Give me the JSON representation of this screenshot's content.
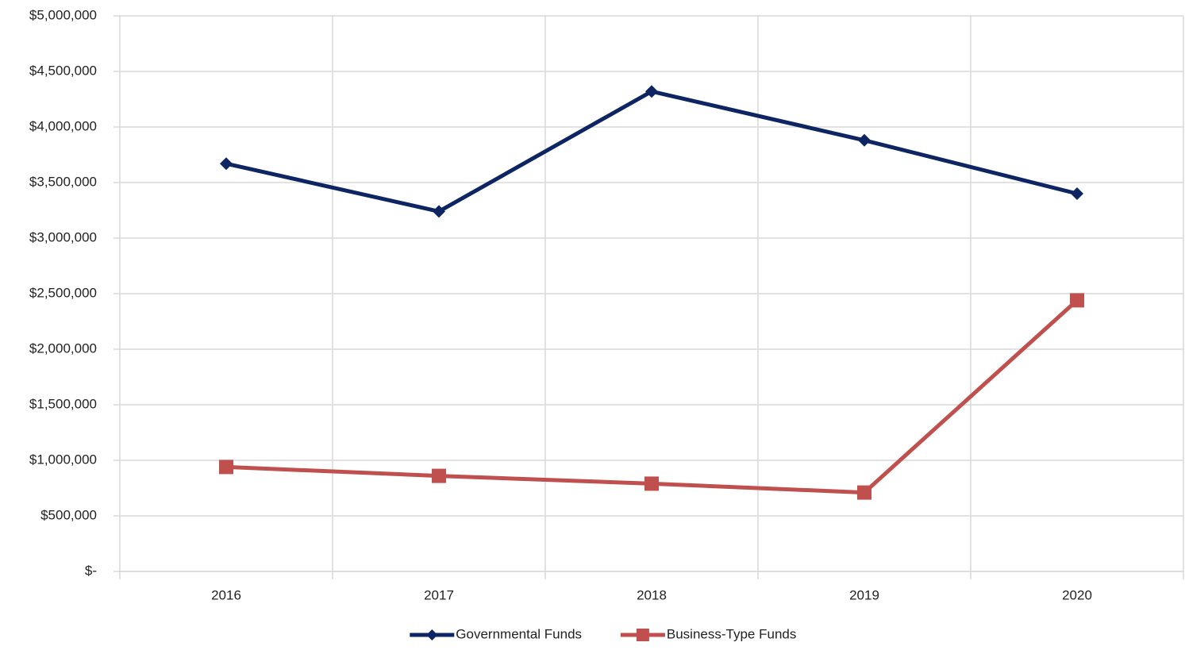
{
  "chart_data": {
    "type": "line",
    "categories": [
      "2016",
      "2017",
      "2018",
      "2019",
      "2020"
    ],
    "series": [
      {
        "name": "Governmental Funds",
        "color": "#0e2563",
        "marker": "diamond",
        "values": [
          3670000,
          3240000,
          4320000,
          3880000,
          3400000
        ]
      },
      {
        "name": "Business-Type Funds",
        "color": "#c0504d",
        "marker": "square",
        "values": [
          940000,
          860000,
          790000,
          710000,
          2440000
        ]
      }
    ],
    "ylim": [
      0,
      5000000
    ],
    "yticks": [
      {
        "value": 0,
        "label": "$-"
      },
      {
        "value": 500000,
        "label": "$500,000"
      },
      {
        "value": 1000000,
        "label": "$1,000,000"
      },
      {
        "value": 1500000,
        "label": "$1,500,000"
      },
      {
        "value": 2000000,
        "label": "$2,000,000"
      },
      {
        "value": 2500000,
        "label": "$2,500,000"
      },
      {
        "value": 3000000,
        "label": "$3,000,000"
      },
      {
        "value": 3500000,
        "label": "$3,500,000"
      },
      {
        "value": 4000000,
        "label": "$4,000,000"
      },
      {
        "value": 4500000,
        "label": "$4,500,000"
      },
      {
        "value": 5000000,
        "label": "$5,000,000"
      }
    ],
    "grid": true,
    "legend": "bottom"
  }
}
